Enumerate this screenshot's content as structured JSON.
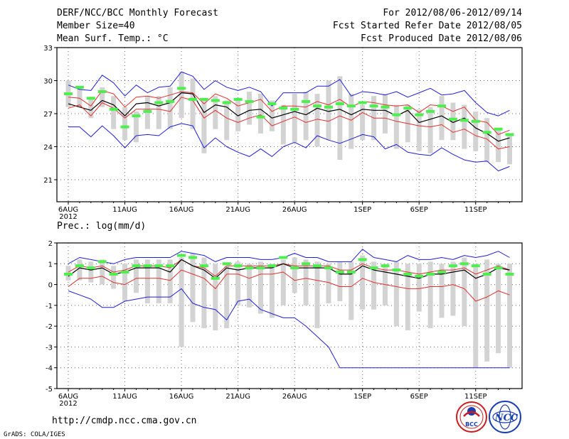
{
  "header": {
    "title": "DERF/NCC/BCC Monthly Forecast",
    "member_size": "Member Size=40",
    "range": "For 2012/08/06-2012/09/14",
    "fcst_started": "Fcst Started Refer Date 2012/08/05",
    "fcst_produced": "Fcst Produced Date 2012/08/06"
  },
  "footer": {
    "url": "http://cmdp.ncc.cma.gov.cn",
    "grads": "GrADS: COLA/IGES",
    "logo_bcc": "BCC",
    "logo_ncc": "NCC"
  },
  "colors": {
    "box": "#d3d3d3",
    "ensemble_mean": "#000000",
    "envelope_inner": "#e03030",
    "envelope_outer": "#1f1fd8",
    "forecast_mark": "#4cef4c",
    "grid": "#666666"
  },
  "chart_data": [
    {
      "type": "line",
      "title": "Mean Surf. Temp.: °C",
      "x_labels": [
        "6AUG",
        "11AUG",
        "16AUG",
        "21AUG",
        "26AUG",
        "1SEP",
        "6SEP",
        "11SEP"
      ],
      "x_label_index": [
        0,
        5,
        10,
        15,
        20,
        26,
        31,
        36
      ],
      "year_label": "2012",
      "ylim": [
        19,
        33
      ],
      "yticks": [
        21,
        24,
        27,
        30,
        33
      ],
      "grid": true,
      "series": [
        {
          "name": "member max",
          "values": [
            29.6,
            29.2,
            29.1,
            30.5,
            29.8,
            28.6,
            29.6,
            28.9,
            29.4,
            29.5,
            30.8,
            30.4,
            29.2,
            30.0,
            29.4,
            29.1,
            29.4,
            29.0,
            27.7,
            28.9,
            28.9,
            28.9,
            29.5,
            29.5,
            30.1,
            28.6,
            29.0,
            28.9,
            28.7,
            29.0,
            28.5,
            28.9,
            29.3,
            28.7,
            28.8,
            29.1,
            28.0,
            27.1,
            26.8,
            27.3
          ]
        },
        {
          "name": "member min",
          "values": [
            25.8,
            25.8,
            24.9,
            25.9,
            25.0,
            23.9,
            25.0,
            25.1,
            25.0,
            25.8,
            26.1,
            25.9,
            23.9,
            24.8,
            24.0,
            23.5,
            23.1,
            23.8,
            23.1,
            24.0,
            24.4,
            23.9,
            25.0,
            24.6,
            24.3,
            24.7,
            25.1,
            24.9,
            23.8,
            24.2,
            23.5,
            23.3,
            23.2,
            23.9,
            23.3,
            22.8,
            22.6,
            22.7,
            21.8,
            22.2
          ]
        },
        {
          "name": "upper envelope",
          "values": [
            28.5,
            28.4,
            27.7,
            29.1,
            28.8,
            27.6,
            28.5,
            28.6,
            28.4,
            28.7,
            29.0,
            28.9,
            27.9,
            28.8,
            28.4,
            27.7,
            28.0,
            28.3,
            27.2,
            27.7,
            27.7,
            27.6,
            28.1,
            27.8,
            28.3,
            27.6,
            28.1,
            28.0,
            27.8,
            27.7,
            27.8,
            27.1,
            27.8,
            27.7,
            27.2,
            27.6,
            26.4,
            26.2,
            25.1,
            25.5
          ]
        },
        {
          "name": "ensemble mean",
          "values": [
            27.9,
            27.6,
            27.3,
            28.2,
            27.8,
            26.8,
            27.9,
            28.0,
            27.7,
            28.0,
            28.9,
            28.8,
            27.1,
            27.8,
            27.6,
            26.8,
            27.3,
            27.4,
            26.6,
            26.9,
            27.2,
            26.9,
            27.5,
            27.2,
            27.4,
            26.9,
            27.4,
            27.3,
            27.3,
            26.8,
            27.3,
            26.2,
            26.5,
            26.8,
            26.2,
            26.6,
            25.7,
            25.2,
            24.5,
            24.8
          ]
        },
        {
          "name": "lower envelope",
          "values": [
            27.5,
            27.8,
            26.8,
            28.0,
            27.5,
            26.6,
            27.4,
            27.4,
            27.4,
            27.2,
            28.5,
            28.2,
            26.6,
            27.3,
            26.6,
            26.2,
            26.6,
            26.9,
            25.9,
            26.3,
            26.7,
            26.2,
            26.5,
            26.3,
            26.8,
            26.4,
            27.1,
            26.6,
            26.6,
            26.3,
            26.1,
            25.9,
            25.8,
            26.0,
            25.3,
            25.6,
            25.0,
            24.7,
            23.8,
            24.0
          ]
        }
      ],
      "forecast": [
        28.8,
        29.4,
        28.4,
        29.0,
        27.4,
        25.8,
        26.8,
        27.2,
        28.0,
        28.1,
        29.3,
        28.3,
        28.3,
        28.2,
        28.0,
        28.3,
        28.1,
        26.7,
        27.9,
        27.5,
        27.4,
        28.1,
        27.7,
        27.6,
        27.9,
        27.7,
        28.0,
        27.7,
        27.6,
        26.9,
        27.5,
        26.9,
        27.2,
        27.7,
        26.5,
        26.4,
        26.3,
        25.3,
        25.6,
        25.1
      ],
      "box_range": [
        [
          27.6,
          30.0
        ],
        [
          27.6,
          29.4
        ],
        [
          26.6,
          28.4
        ],
        [
          27.6,
          29.4
        ],
        [
          25.6,
          28.6
        ],
        [
          24.6,
          27.6
        ],
        [
          24.4,
          27.2
        ],
        [
          25.6,
          28.6
        ],
        [
          25.6,
          28.6
        ],
        [
          25.6,
          29.4
        ],
        [
          26.6,
          30.8
        ],
        [
          25.6,
          30.2
        ],
        [
          23.4,
          28.4
        ],
        [
          25.6,
          28.6
        ],
        [
          24.6,
          28.2
        ],
        [
          25.4,
          28.2
        ],
        [
          26.0,
          29.0
        ],
        [
          25.2,
          28.8
        ],
        [
          25.4,
          28.2
        ],
        [
          24.2,
          27.8
        ],
        [
          24.4,
          28.8
        ],
        [
          24.6,
          29.0
        ],
        [
          24.0,
          28.8
        ],
        [
          24.6,
          30.0
        ],
        [
          22.8,
          30.4
        ],
        [
          23.8,
          28.8
        ],
        [
          24.6,
          27.8
        ],
        [
          24.6,
          28.6
        ],
        [
          25.2,
          28.8
        ],
        [
          23.8,
          27.8
        ],
        [
          24.4,
          27.8
        ],
        [
          23.6,
          27.4
        ],
        [
          23.4,
          27.6
        ],
        [
          24.6,
          28.6
        ],
        [
          24.6,
          28.0
        ],
        [
          23.8,
          27.8
        ],
        [
          23.6,
          27.2
        ],
        [
          22.6,
          26.6
        ],
        [
          22.6,
          25.6
        ],
        [
          22.4,
          25.2
        ]
      ]
    },
    {
      "type": "line",
      "title": "Prec.: log(mm/d)",
      "x_labels": [
        "6AUG",
        "11AUG",
        "16AUG",
        "21AUG",
        "26AUG",
        "1SEP",
        "6SEP",
        "11SEP"
      ],
      "x_label_index": [
        0,
        5,
        10,
        15,
        20,
        26,
        31,
        36
      ],
      "year_label": "2012",
      "ylim": [
        -5,
        2
      ],
      "yticks": [
        -5,
        -4,
        -3,
        -2,
        -1,
        0,
        1,
        2
      ],
      "grid": true,
      "series": [
        {
          "name": "member max",
          "values": [
            1.0,
            1.3,
            1.2,
            1.1,
            1.0,
            1.2,
            1.3,
            1.3,
            1.3,
            1.3,
            1.6,
            1.5,
            1.4,
            1.1,
            1.3,
            1.3,
            1.3,
            1.2,
            1.2,
            1.3,
            1.5,
            1.3,
            1.3,
            1.1,
            1.1,
            1.1,
            1.7,
            1.3,
            1.2,
            1.1,
            1.4,
            1.2,
            1.2,
            1.3,
            1.2,
            1.4,
            1.3,
            1.4,
            1.6,
            1.3
          ]
        },
        {
          "name": "member min",
          "values": [
            -0.3,
            -0.5,
            -0.7,
            -1.1,
            -1.1,
            -0.8,
            -0.7,
            -0.6,
            -0.6,
            -0.6,
            -0.2,
            -0.9,
            -1.1,
            -1.2,
            -1.7,
            -0.8,
            -0.7,
            -1.2,
            -1.4,
            -1.6,
            -1.6,
            -2.0,
            -2.5,
            -3.0,
            -4.0,
            -4.0,
            -4.0,
            -4.0,
            -4.0,
            -4.0,
            -4.0,
            -4.0,
            -4.0,
            -4.0,
            -4.0,
            -4.0,
            -4.0,
            -4.0,
            -4.0,
            -4.0
          ]
        },
        {
          "name": "upper envelope",
          "values": [
            0.6,
            0.9,
            0.8,
            0.9,
            0.6,
            0.7,
            0.9,
            0.9,
            0.9,
            0.8,
            1.2,
            0.9,
            0.8,
            0.4,
            0.9,
            0.9,
            0.9,
            0.9,
            0.9,
            1.0,
            0.9,
            0.9,
            0.9,
            0.9,
            0.7,
            0.7,
            1.0,
            0.8,
            0.7,
            0.7,
            0.6,
            0.5,
            0.6,
            0.7,
            0.7,
            0.8,
            0.5,
            0.7,
            0.9,
            0.7
          ]
        },
        {
          "name": "ensemble mean",
          "values": [
            0.4,
            0.8,
            0.7,
            0.8,
            0.5,
            0.6,
            0.8,
            0.8,
            0.8,
            0.6,
            1.2,
            0.9,
            0.7,
            0.3,
            0.8,
            0.7,
            0.8,
            0.8,
            0.8,
            1.0,
            0.8,
            0.8,
            0.8,
            0.8,
            0.5,
            0.5,
            0.9,
            0.7,
            0.6,
            0.5,
            0.4,
            0.3,
            0.5,
            0.5,
            0.6,
            0.7,
            0.3,
            0.5,
            0.8,
            0.7
          ]
        },
        {
          "name": "lower envelope",
          "values": [
            -0.1,
            0.3,
            0.3,
            0.4,
            0.1,
            0.0,
            0.3,
            0.3,
            0.3,
            0.2,
            0.7,
            0.5,
            0.3,
            -0.2,
            0.5,
            0.5,
            0.3,
            0.5,
            0.5,
            0.6,
            0.2,
            0.3,
            0.2,
            0.1,
            -0.1,
            -0.1,
            0.3,
            0.1,
            0.0,
            -0.1,
            -0.2,
            -0.2,
            -0.1,
            -0.1,
            0.0,
            -0.2,
            -0.8,
            -0.6,
            -0.3,
            -0.5
          ]
        }
      ],
      "forecast": [
        0.5,
        0.9,
        0.8,
        1.1,
        0.5,
        0.6,
        0.9,
        0.9,
        0.9,
        0.9,
        1.4,
        1.3,
        0.9,
        0.3,
        1.0,
        0.9,
        0.8,
        0.8,
        0.9,
        1.3,
        0.8,
        1.0,
        0.9,
        0.8,
        0.6,
        0.6,
        1.2,
        0.8,
        0.9,
        0.7,
        0.5,
        0.4,
        0.5,
        0.6,
        0.9,
        1.0,
        0.9,
        0.5,
        0.8,
        0.5
      ],
      "box_range": [
        [
          0.2,
          0.9
        ],
        [
          0.2,
          1.2
        ],
        [
          0.1,
          1.1
        ],
        [
          0.0,
          1.2
        ],
        [
          -0.2,
          0.9
        ],
        [
          -0.8,
          1.0
        ],
        [
          -0.4,
          1.2
        ],
        [
          -0.9,
          1.2
        ],
        [
          -0.9,
          1.2
        ],
        [
          -0.9,
          1.2
        ],
        [
          -3.0,
          1.3
        ],
        [
          -1.8,
          1.5
        ],
        [
          -2.1,
          1.3
        ],
        [
          -2.2,
          1.0
        ],
        [
          -2.1,
          0.9
        ],
        [
          -1.0,
          1.1
        ],
        [
          -1.1,
          1.0
        ],
        [
          -1.4,
          1.1
        ],
        [
          -1.6,
          1.0
        ],
        [
          -1.0,
          1.2
        ],
        [
          -0.4,
          1.3
        ],
        [
          -1.0,
          1.2
        ],
        [
          -2.1,
          1.1
        ],
        [
          -0.9,
          1.0
        ],
        [
          -0.8,
          1.1
        ],
        [
          -1.7,
          1.1
        ],
        [
          -1.2,
          1.4
        ],
        [
          -1.2,
          1.1
        ],
        [
          -1.0,
          1.0
        ],
        [
          -2.0,
          1.1
        ],
        [
          -2.2,
          1.0
        ],
        [
          -1.3,
          1.0
        ],
        [
          -2.1,
          1.1
        ],
        [
          -1.6,
          1.0
        ],
        [
          -1.5,
          1.1
        ],
        [
          -2.0,
          1.3
        ],
        [
          -4.0,
          1.0
        ],
        [
          -3.7,
          1.2
        ],
        [
          -3.3,
          1.0
        ],
        [
          -4.0,
          1.0
        ]
      ]
    }
  ]
}
